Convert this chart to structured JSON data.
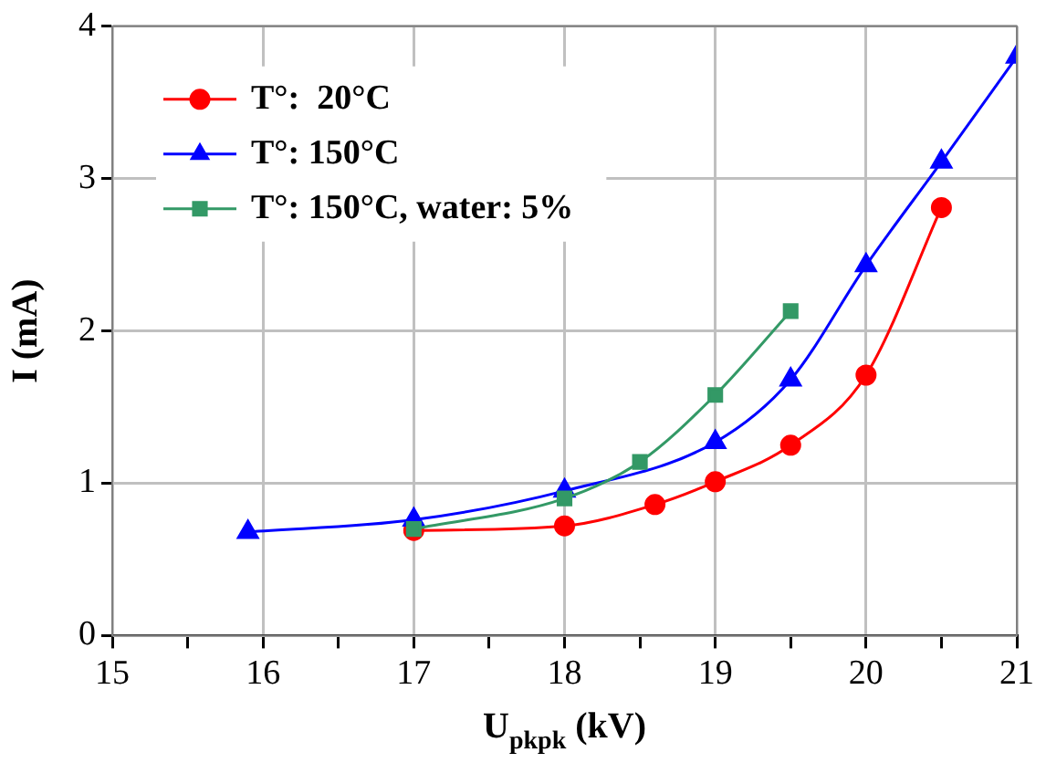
{
  "chart_data": {
    "type": "line",
    "xlabel": "U$_{pkpk}$ (kV)",
    "ylabel": "I (mA)",
    "xlim": [
      15,
      21
    ],
    "xticks": [
      15,
      {
        "value": 15.5,
        "label": null
      },
      16,
      {
        "value": 16.5,
        "label": null
      },
      17,
      {
        "value": 17.5,
        "label": null
      },
      18,
      {
        "value": 18.5,
        "label": null
      },
      19,
      {
        "value": 19.5,
        "label": null
      },
      20,
      {
        "value": 20.5,
        "label": null
      },
      21
    ],
    "ylim": [
      0,
      4
    ],
    "yticks": [
      0,
      1,
      2,
      3,
      4
    ],
    "grid": true,
    "legend": "top left",
    "series": [
      {
        "name": "T°:  20°C",
        "color": "#ff0000",
        "marker": "circle",
        "x": [
          17,
          18,
          18.6,
          19,
          19.5,
          20,
          20.5
        ],
        "values": [
          0.69,
          0.72,
          0.86,
          1.01,
          1.25,
          1.71,
          2.81
        ]
      },
      {
        "name": "T°: 150°C",
        "color": "#0000ff",
        "marker": "triangle",
        "x": [
          15.9,
          17,
          18,
          19,
          19.5,
          20,
          20.5,
          21
        ],
        "values": [
          0.68,
          0.76,
          0.95,
          1.27,
          1.68,
          2.43,
          3.11,
          3.8
        ]
      },
      {
        "name": "T°: 150°C, water: 5%",
        "color": "#339966",
        "marker": "square",
        "x": [
          17,
          18,
          18.5,
          19,
          19.5
        ],
        "values": [
          0.7,
          0.9,
          1.14,
          1.58,
          2.13
        ]
      }
    ]
  }
}
